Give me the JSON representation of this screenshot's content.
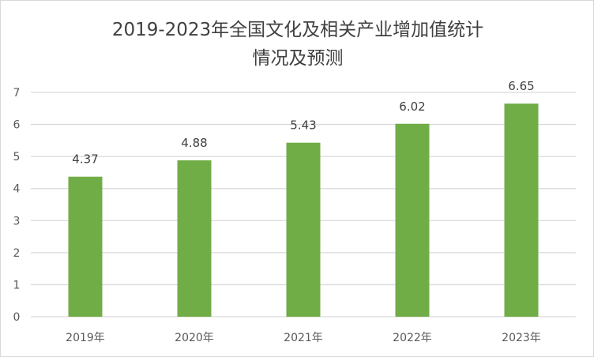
{
  "chart_data": {
    "type": "bar",
    "title_lines": [
      "2019-2023年全国文化及相关产业增加值统计",
      "情况及预测"
    ],
    "categories": [
      "2019年",
      "2020年",
      "2021年",
      "2022年",
      "2023年"
    ],
    "values": [
      4.37,
      4.88,
      5.43,
      6.02,
      6.65
    ],
    "value_labels": [
      "4.37",
      "4.88",
      "5.43",
      "6.02",
      "6.65"
    ],
    "y_ticks": [
      "0",
      "1",
      "2",
      "3",
      "4",
      "5",
      "6",
      "7"
    ],
    "ylim": [
      0,
      7
    ],
    "grid": true,
    "legend": "none",
    "bar_color": "#70ad47",
    "xlabel": "",
    "ylabel": ""
  }
}
